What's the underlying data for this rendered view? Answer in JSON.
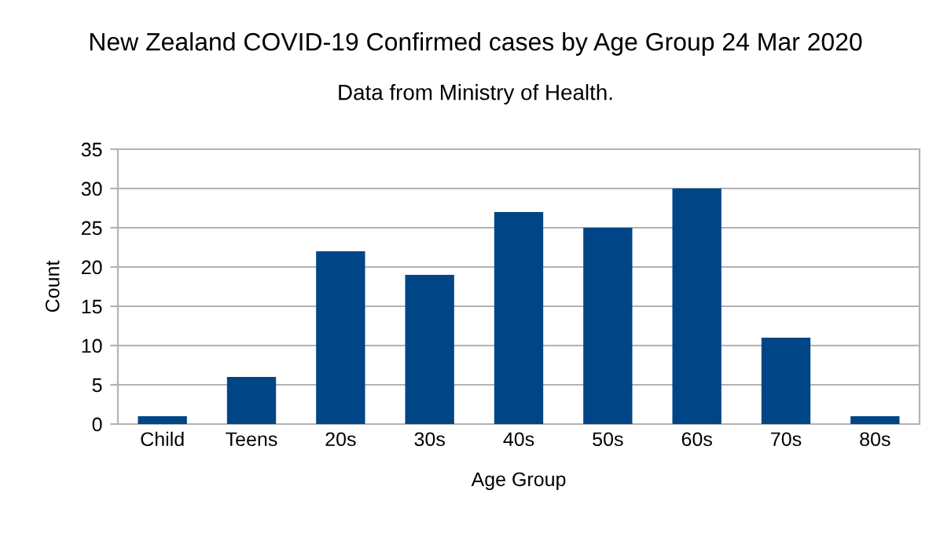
{
  "chart_data": {
    "type": "bar",
    "title": "New Zealand COVID-19 Confirmed cases by Age Group 24 Mar 2020",
    "subtitle": "Data from Ministry of Health.",
    "xlabel": "Age Group",
    "ylabel": "Count",
    "categories": [
      "Child",
      "Teens",
      "20s",
      "30s",
      "40s",
      "50s",
      "60s",
      "70s",
      "80s"
    ],
    "values": [
      1,
      6,
      22,
      19,
      27,
      25,
      30,
      11,
      1
    ],
    "color": "#004586",
    "ylim": [
      0,
      35
    ],
    "yticks": [
      0,
      5,
      10,
      15,
      20,
      25,
      30,
      35
    ],
    "grid": "y",
    "legend": false
  }
}
